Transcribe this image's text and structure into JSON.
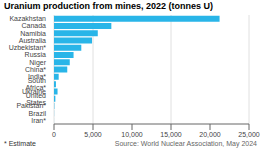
{
  "chart_data": {
    "type": "bar",
    "orientation": "horizontal",
    "title": "Uranium production from mines, 2022 (tonnes U)",
    "source": "Source: World Nuclear Association, May 2024",
    "footnote": "* Estimate",
    "categories": [
      "Kazakhstan",
      "Canada",
      "Namibia",
      "Australia",
      "Uzbekistan*",
      "Russia",
      "Niger",
      "China*",
      "India*",
      "South Africa*",
      "Ukraine",
      "United States",
      "Pakistan*",
      "Brazil",
      "Iran*"
    ],
    "values": [
      21227,
      7351,
      5613,
      4874,
      3500,
      2508,
      2020,
      1700,
      600,
      250,
      455,
      175,
      45,
      16,
      5
    ],
    "color": "#29b5e8",
    "xlim": [
      0,
      25000
    ],
    "xticks": [
      0,
      {
        "value": 5000,
        "label": "5,000"
      },
      {
        "value": 10000,
        "label": "10,000"
      },
      {
        "value": 15000,
        "label": "15,000"
      },
      {
        "value": 20000,
        "label": "20,000"
      },
      {
        "value": 25000,
        "label": "25,000"
      }
    ],
    "grid": true
  }
}
